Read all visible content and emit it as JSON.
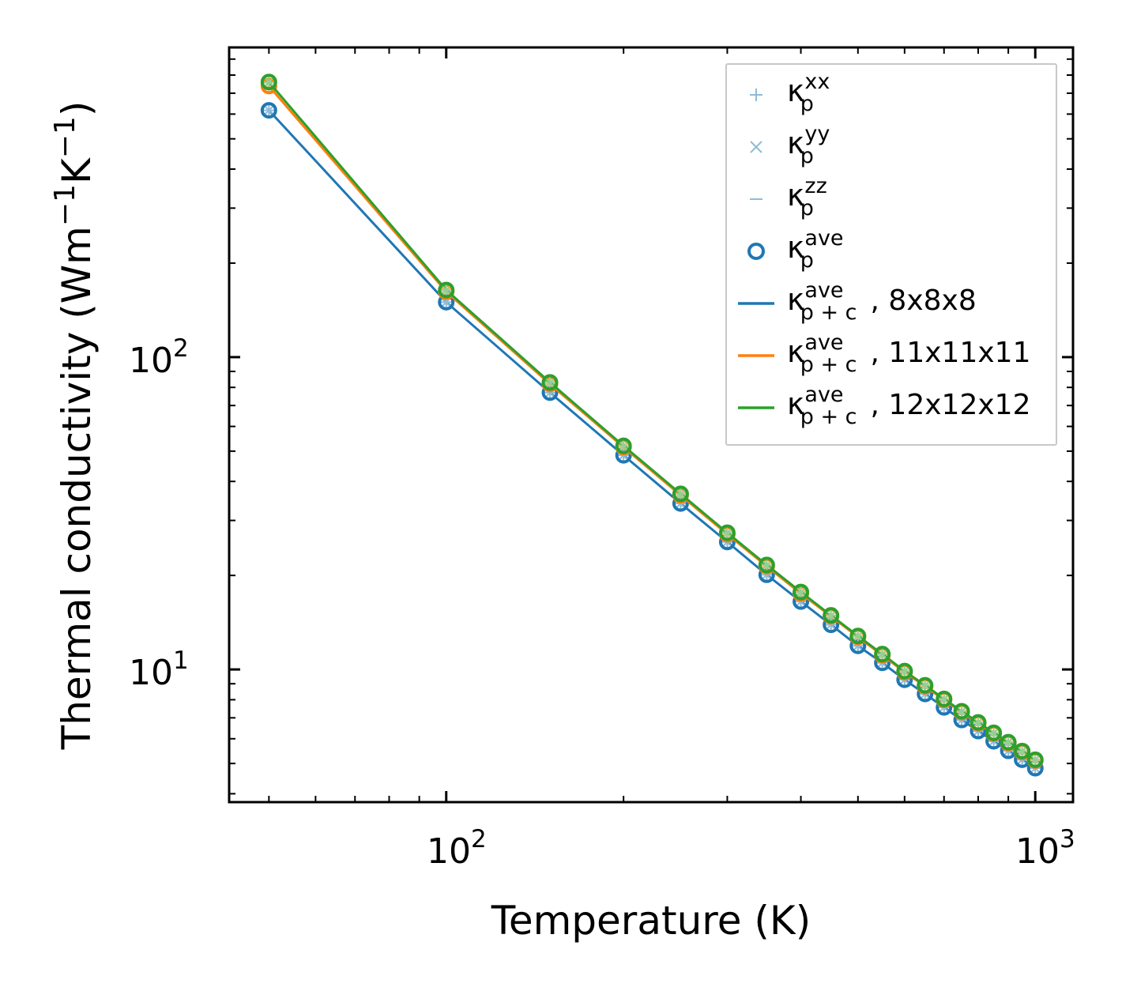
{
  "chart_data": {
    "type": "line",
    "xlabel": "Temperature (K)",
    "ylabel": "Thermal conductivity (Wm",
    "ylabel_parts": [
      "Thermal conductivity (Wm",
      "−1",
      "K",
      "−1",
      ")"
    ],
    "xscale": "log",
    "yscale": "log",
    "xlim": [
      42.8,
      1159
    ],
    "ylim": [
      3.76,
      981
    ],
    "x_ticks": [
      {
        "base": "10",
        "exp": "2",
        "value": 100
      },
      {
        "base": "10",
        "exp": "3",
        "value": 1000
      }
    ],
    "y_ticks": [
      {
        "base": "10",
        "exp": "1",
        "value": 10
      },
      {
        "base": "10",
        "exp": "2",
        "value": 100
      }
    ],
    "x": [
      50,
      100,
      150,
      200,
      250,
      300,
      350,
      400,
      450,
      500,
      550,
      600,
      650,
      700,
      750,
      800,
      850,
      900,
      950,
      1000
    ],
    "series": [
      {
        "name": "8x8x8",
        "color": "#1f77b4",
        "light": "#8fbbd9",
        "values": [
          617,
          150,
          77,
          48.5,
          34,
          25.6,
          20.1,
          16.5,
          13.9,
          11.9,
          10.5,
          9.27,
          8.35,
          7.56,
          6.89,
          6.35,
          5.89,
          5.49,
          5.14,
          4.83
        ]
      },
      {
        "name": "11x11x11",
        "color": "#ff7f0e",
        "light": "#ffbf86",
        "values": [
          738,
          162,
          82,
          51.5,
          36.1,
          27.1,
          21.4,
          17.5,
          14.8,
          12.7,
          11.1,
          9.8,
          8.83,
          7.99,
          7.3,
          6.72,
          6.23,
          5.81,
          5.44,
          5.11
        ]
      },
      {
        "name": "12x12x12",
        "color": "#2ca02c",
        "light": "#95cf95",
        "values": [
          760,
          164,
          83,
          52,
          36.5,
          27.4,
          21.6,
          17.7,
          14.9,
          12.8,
          11.2,
          9.88,
          8.9,
          8.05,
          7.35,
          6.77,
          6.27,
          5.85,
          5.48,
          5.14
        ]
      }
    ],
    "legend": {
      "placement": "top-right",
      "entries": [
        {
          "symbol": "plus",
          "base": "κ",
          "sub": "p",
          "sup": "xx",
          "rest": ""
        },
        {
          "symbol": "cross",
          "base": "κ",
          "sub": "p",
          "sup": "yy",
          "rest": ""
        },
        {
          "symbol": "dash",
          "base": "κ",
          "sub": "p",
          "sup": "zz",
          "rest": ""
        },
        {
          "symbol": "circle",
          "base": "κ",
          "sub": "p",
          "sup": "ave",
          "rest": ""
        },
        {
          "symbol": "line-blue",
          "base": "κ",
          "sub": "p + c",
          "sup": "ave",
          "rest": ", 8x8x8"
        },
        {
          "symbol": "line-orange",
          "base": "κ",
          "sub": "p + c",
          "sup": "ave",
          "rest": ", 11x11x11"
        },
        {
          "symbol": "line-green",
          "base": "κ",
          "sub": "p + c",
          "sup": "ave",
          "rest": ", 12x12x12"
        }
      ]
    },
    "grid": false
  }
}
